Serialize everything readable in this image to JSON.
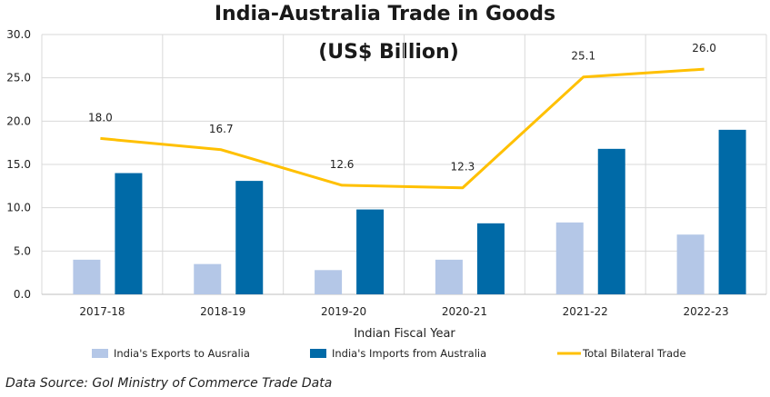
{
  "chart_data": {
    "type": "bar",
    "title_line1": "India-Australia Trade in Goods",
    "title_line2": "(US$ Billion)",
    "xlabel": "Indian Fiscal Year",
    "ylabel": "",
    "ylim": [
      0,
      30
    ],
    "yticks": [
      "0.0",
      "5.0",
      "10.0",
      "15.0",
      "20.0",
      "25.0",
      "30.0"
    ],
    "categories": [
      "2017-18",
      "2018-19",
      "2019-20",
      "2020-21",
      "2021-22",
      "2022-23"
    ],
    "grid": true,
    "legend_position": "bottom",
    "series": [
      {
        "name": "India's Exports to Ausralia",
        "type": "bar",
        "color": "#b4c7e7",
        "values": [
          4.0,
          3.5,
          2.8,
          4.0,
          8.3,
          6.9
        ]
      },
      {
        "name": "India's Imports from Australia",
        "type": "bar",
        "color": "#006aa7",
        "values": [
          14.0,
          13.1,
          9.8,
          8.2,
          16.8,
          19.0
        ]
      },
      {
        "name": "Total Bilateral Trade",
        "type": "line",
        "color": "#ffc000",
        "values": [
          18.0,
          16.7,
          12.6,
          12.3,
          25.1,
          26.0
        ],
        "labels": [
          "18.0",
          "16.7",
          "12.6",
          "12.3",
          "25.1",
          "26.0"
        ]
      }
    ]
  },
  "source_text": "Data Source: GoI Ministry of Commerce Trade Data"
}
